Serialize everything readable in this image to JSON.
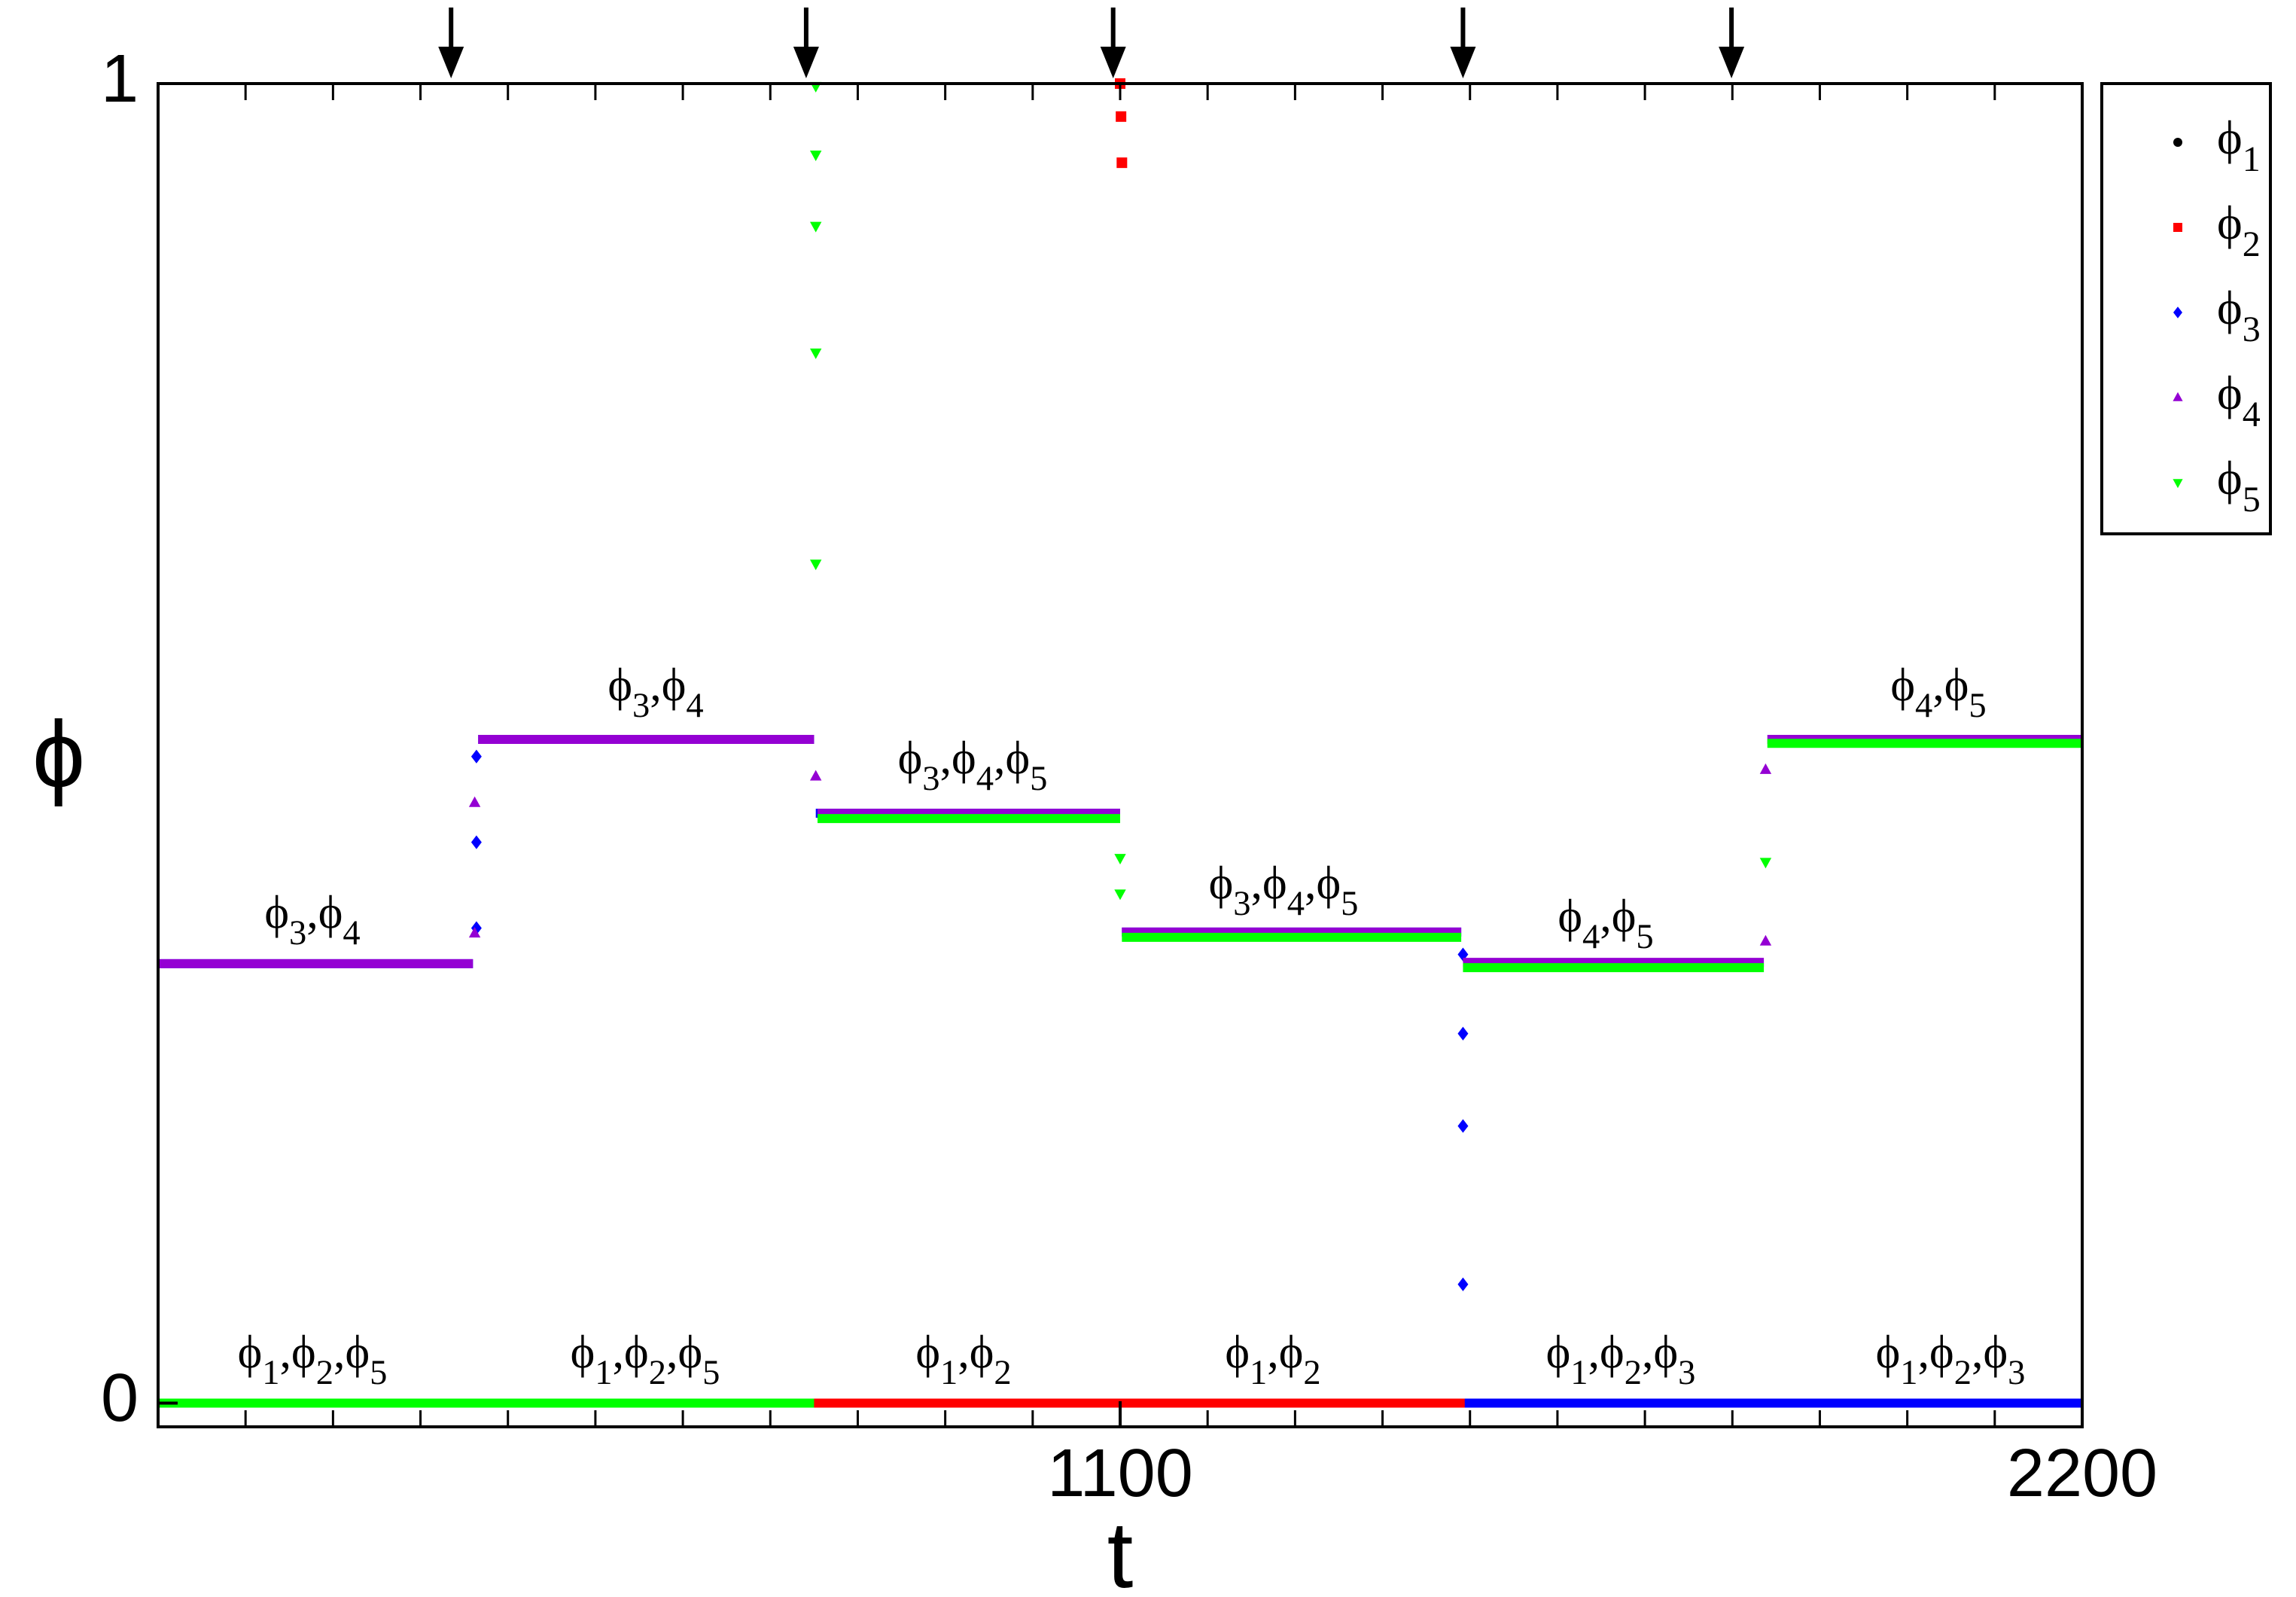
{
  "chart_data": {
    "type": "line",
    "xlabel": "t",
    "ylabel": "ϕ",
    "xlim": [
      0,
      2200
    ],
    "ylim": [
      -0.018,
      1
    ],
    "xticks": [
      1100,
      2200
    ],
    "xminorticks": [
      0,
      100,
      200,
      300,
      400,
      500,
      600,
      700,
      800,
      900,
      1000,
      1100,
      1200,
      1300,
      1400,
      1500,
      1600,
      1700,
      1800,
      1900,
      2000,
      2100,
      2200
    ],
    "yticks": [
      0,
      1
    ],
    "arrows_x": [
      335,
      741,
      1092,
      1492,
      1799
    ],
    "legend": "outside-right-top",
    "series": [
      {
        "name": "ϕ1",
        "color": "#000000",
        "marker": "circle",
        "x": [
          0,
          2200
        ],
        "values": [
          0,
          0
        ]
      },
      {
        "name": "ϕ2",
        "color": "#ff0000",
        "marker": "square",
        "x": [
          0,
          2200,
          1100,
          1100,
          1101,
          1101,
          1101,
          1102
        ],
        "values": [
          0,
          0,
          null,
          1.0,
          null,
          0.975,
          null,
          0.94
        ]
      },
      {
        "name": "ϕ3",
        "color": "#0000ff",
        "marker": "diamond",
        "x": [
          0,
          360,
          360,
          364,
          364,
          364,
          364,
          364,
          364,
          366,
          750,
          750,
          752,
          1100,
          1100,
          1102,
          1490,
          1490,
          1492,
          1492,
          1492,
          1492,
          1492,
          1492,
          1492,
          1492,
          1494,
          2200
        ],
        "values": [
          0.333,
          0.333,
          null,
          0.36,
          null,
          0.425,
          null,
          0.49,
          null,
          0.503,
          0.503,
          null,
          0.447,
          0.447,
          null,
          0.357,
          0.357,
          null,
          0.34,
          null,
          0.28,
          null,
          0.21,
          null,
          0.09,
          null,
          0,
          0
        ]
      },
      {
        "name": "ϕ4",
        "color": "#9400d3",
        "marker": "triangle-up",
        "x": [
          0,
          360,
          360,
          362,
          362,
          362,
          362,
          366,
          750,
          750,
          752,
          752,
          754,
          1100,
          1100,
          1102,
          1490,
          1490,
          1492,
          1836,
          1836,
          1838,
          1838,
          1838,
          1838,
          1840,
          2200
        ],
        "values": [
          0.333,
          0.333,
          null,
          0.356,
          null,
          0.455,
          null,
          0.503,
          0.503,
          null,
          0.475,
          null,
          0.447,
          0.447,
          null,
          0.357,
          0.357,
          null,
          0.334,
          0.334,
          null,
          0.35,
          null,
          0.48,
          null,
          0.503,
          0.503
        ]
      },
      {
        "name": "ϕ5",
        "color": "#00ff00",
        "marker": "triangle-down",
        "x": [
          0,
          750,
          750,
          752,
          752,
          752,
          752,
          752,
          752,
          752,
          752,
          752,
          752,
          754,
          1100,
          1100,
          1100,
          1100,
          1100,
          1100,
          1102,
          1490,
          1490,
          1492,
          1836,
          1836,
          1838,
          1838,
          1840,
          2200
        ],
        "values": [
          0,
          0,
          null,
          0.998,
          null,
          0.946,
          null,
          0.892,
          null,
          0.796,
          null,
          0.636,
          null,
          0.443,
          0.443,
          null,
          0.413,
          null,
          0.386,
          null,
          0.353,
          0.353,
          null,
          0.33,
          0.33,
          null,
          0.41,
          null,
          0.5,
          0.5
        ]
      }
    ],
    "annotations": [
      "ϕ3,ϕ4",
      "ϕ3,ϕ4",
      "ϕ3,ϕ4,ϕ5",
      "ϕ3,ϕ4,ϕ5",
      "ϕ4,ϕ5",
      "ϕ4,ϕ5",
      "ϕ1,ϕ2,ϕ5",
      "ϕ1,ϕ2,ϕ5",
      "ϕ1,ϕ2",
      "ϕ1,ϕ2",
      "ϕ1,ϕ2,ϕ3",
      "ϕ1,ϕ2,ϕ3"
    ]
  }
}
